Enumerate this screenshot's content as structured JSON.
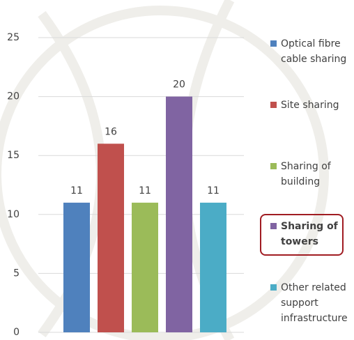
{
  "chart_data": {
    "type": "bar",
    "series": [
      {
        "name": "Optical fibre cable sharing",
        "color": "#4f81bd",
        "values": [
          11
        ]
      },
      {
        "name": "Site sharing",
        "color": "#c0504d",
        "values": [
          16
        ]
      },
      {
        "name": "Sharing of building",
        "color": "#9bbb59",
        "values": [
          11
        ]
      },
      {
        "name": "Sharing of towers",
        "color": "#8064a2",
        "values": [
          20
        ]
      },
      {
        "name": "Other related support infrastructure",
        "color": "#4bacc6",
        "values": [
          11
        ]
      }
    ],
    "highlighted_series": 3,
    "ylim": [
      0,
      25
    ],
    "yticks": [
      0,
      5,
      10,
      15,
      20,
      25
    ],
    "grid": true,
    "legend": "right"
  }
}
